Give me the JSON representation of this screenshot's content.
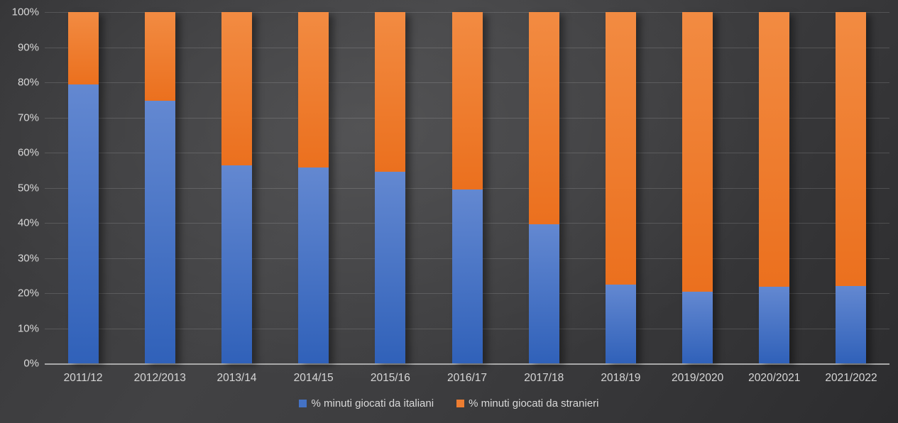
{
  "chart_data": {
    "type": "bar",
    "stacked": true,
    "stacked_percent": true,
    "title": "",
    "categories": [
      "2011/12",
      "2012/2013",
      "2013/14",
      "2014/15",
      "2015/16",
      "2016/17",
      "2017/18",
      "2018/19",
      "2019/2020",
      "2020/2021",
      "2021/2022"
    ],
    "series": [
      {
        "name": "% minuti giocati da italiani",
        "color": "#4472C4",
        "gradient_top": "#6388D1",
        "gradient_bottom": "#3061B9",
        "values": [
          79.4,
          74.8,
          56.3,
          55.8,
          54.5,
          49.5,
          39.6,
          22.5,
          20.4,
          21.9,
          22.0
        ]
      },
      {
        "name": "% minuti giocati da stranieri",
        "color": "#ED7D31",
        "gradient_top": "#F28B42",
        "gradient_bottom": "#EB701E",
        "values": [
          20.6,
          25.2,
          43.7,
          44.2,
          45.5,
          50.5,
          60.4,
          77.5,
          79.6,
          78.1,
          78.0
        ]
      }
    ],
    "yticks": [
      "0%",
      "10%",
      "20%",
      "30%",
      "40%",
      "50%",
      "60%",
      "70%",
      "80%",
      "90%",
      "100%"
    ],
    "ylim": [
      0,
      100
    ],
    "grid": true,
    "legend_position": "bottom",
    "background": "dark-gray-gradient",
    "text_color": "#D9D9D9",
    "gridline_color": "rgba(255,255,255,0.14)",
    "axis_line_color": "#A9A9A9"
  }
}
